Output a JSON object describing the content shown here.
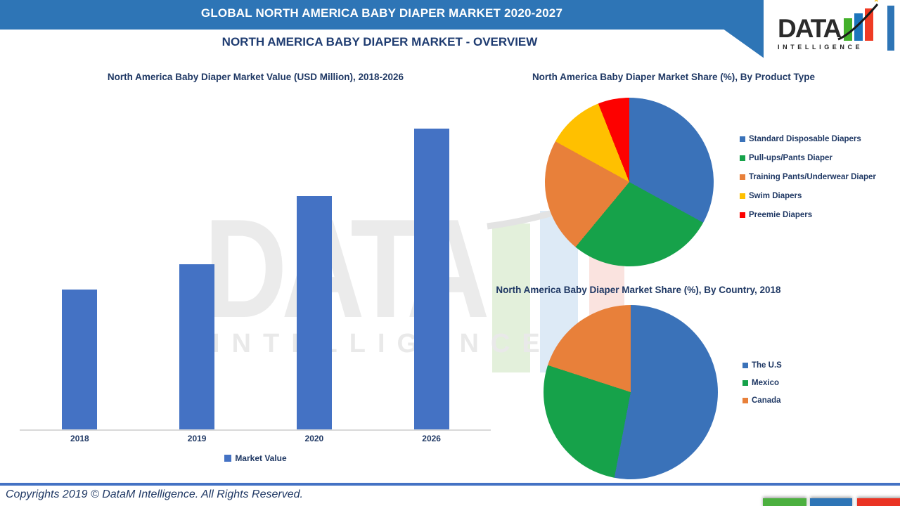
{
  "header": {
    "main_title": "GLOBAL NORTH AMERICA BABY DIAPER MARKET 2020-2027",
    "subtitle": "NORTH AMERICA BABY DIAPER MARKET - OVERVIEW",
    "banner_color": "#2E75B6",
    "right_strip_color": "#2E75B6"
  },
  "logo": {
    "text": "DATA",
    "subtext": "INTELLIGENCE",
    "bar_colors": [
      "#43B02A",
      "#1C75BC",
      "#EF3B24"
    ],
    "star": "★",
    "star_color": "#F5C11E"
  },
  "watermark": {
    "text": "DATA",
    "subtext": "INTELLIGENCE",
    "bar_colors": [
      "#E3F0DB",
      "#DDEAF6",
      "#FAE3DF"
    ]
  },
  "chart_data": [
    {
      "type": "bar",
      "title": "North America Baby Diaper Market Value (USD Million), 2018-2026",
      "categories": [
        "2018",
        "2019",
        "2020",
        "2026"
      ],
      "series": [
        {
          "name": "Market Value",
          "relative_heights_pct": [
            46.5,
            55,
            77.5,
            100
          ]
        }
      ],
      "bar_color": "#4472C4",
      "xlabel": "",
      "ylabel": "",
      "y_axis_shown": false,
      "gridlines": false,
      "legend_position": "bottom",
      "note": "No y-axis or value labels shown; values are bar heights as % of the tallest (2026) bar."
    },
    {
      "type": "pie",
      "title": "North America Baby Diaper Market Share (%), By Product Type",
      "labels": [
        "Standard Disposable Diapers",
        " Pull-ups/Pants Diaper",
        "Training Pants/Underwear Diaper",
        "Swim Diapers",
        "Preemie Diapers"
      ],
      "values_pct": [
        33,
        28,
        22,
        11,
        6
      ],
      "colors": [
        "#3A72B9",
        "#16A24A",
        "#E8803A",
        "#FFC000",
        "#FD0100"
      ],
      "legend_position": "right",
      "start_angle_deg": 0,
      "note": "No data labels shown; percentages estimated from slice angles."
    },
    {
      "type": "pie",
      "title": "North America Baby Diaper Market Share (%), By Country, 2018",
      "labels": [
        "The U.S",
        "Mexico",
        "Canada"
      ],
      "values_pct": [
        53,
        27,
        20
      ],
      "colors": [
        "#3A72B9",
        "#16A24A",
        "#E8803A"
      ],
      "legend_position": "right",
      "start_angle_deg": 0,
      "note": "No data labels shown; percentages estimated from slice angles."
    }
  ],
  "footer": {
    "copyright": "Copyrights 2019 © DataM Intelligence. All Rights Reserved.",
    "line_color": "#4472C4",
    "block_colors": [
      "#4CB03F",
      "#2E75B6",
      "#EA3323"
    ]
  }
}
